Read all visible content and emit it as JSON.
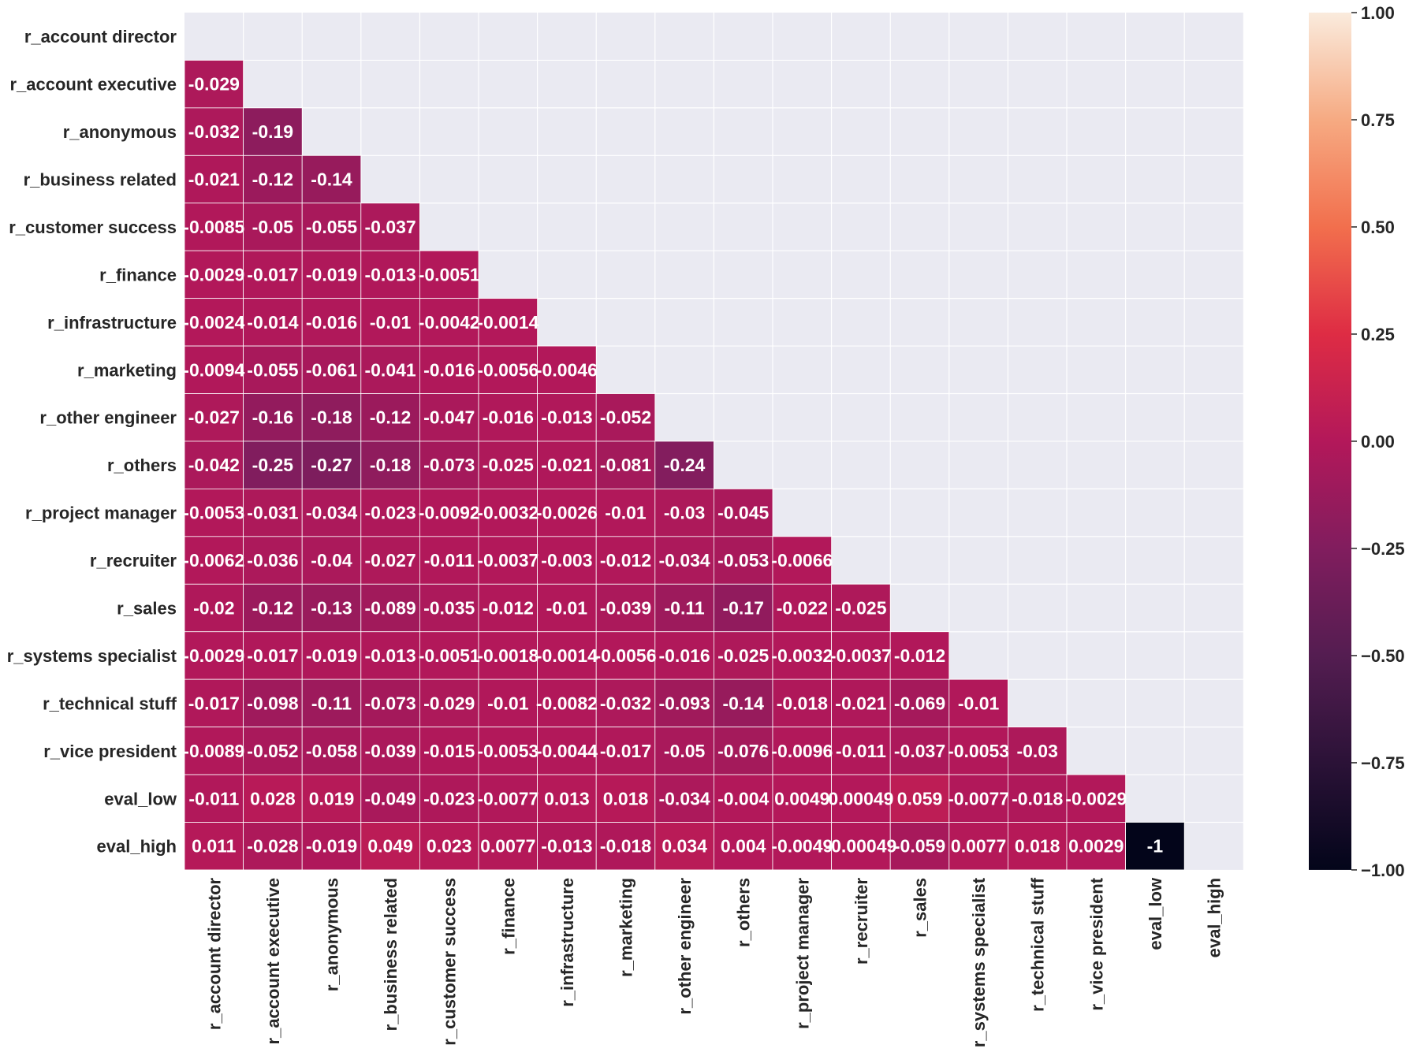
{
  "chart_data": {
    "type": "heatmap",
    "title": "",
    "xlabel": "",
    "ylabel": "",
    "mask": "upper-triangle including diagonal",
    "colormap": "rocket",
    "background_color": "#eaeaf2",
    "rows": [
      "r_account director",
      "r_account executive",
      "r_anonymous",
      "r_business related",
      "r_customer success",
      "r_finance",
      "r_infrastructure",
      "r_marketing",
      "r_other engineer",
      "r_others",
      "r_project manager",
      "r_recruiter",
      "r_sales",
      "r_systems specialist",
      "r_technical stuff",
      "r_vice president",
      "eval_low",
      "eval_high"
    ],
    "columns": [
      "r_account director",
      "r_account executive",
      "r_anonymous",
      "r_business related",
      "r_customer success",
      "r_finance",
      "r_infrastructure",
      "r_marketing",
      "r_other engineer",
      "r_others",
      "r_project manager",
      "r_recruiter",
      "r_sales",
      "r_systems specialist",
      "r_technical stuff",
      "r_vice president",
      "eval_low",
      "eval_high"
    ],
    "labels": [
      [],
      [
        "-0.029"
      ],
      [
        "-0.032",
        "-0.19"
      ],
      [
        "-0.021",
        "-0.12",
        "-0.14"
      ],
      [
        "-0.0085",
        "-0.05",
        "-0.055",
        "-0.037"
      ],
      [
        "-0.0029",
        "-0.017",
        "-0.019",
        "-0.013",
        "-0.0051"
      ],
      [
        "-0.0024",
        "-0.014",
        "-0.016",
        "-0.01",
        "-0.0042",
        "-0.0014"
      ],
      [
        "-0.0094",
        "-0.055",
        "-0.061",
        "-0.041",
        "-0.016",
        "-0.0056",
        "-0.0046"
      ],
      [
        "-0.027",
        "-0.16",
        "-0.18",
        "-0.12",
        "-0.047",
        "-0.016",
        "-0.013",
        "-0.052"
      ],
      [
        "-0.042",
        "-0.25",
        "-0.27",
        "-0.18",
        "-0.073",
        "-0.025",
        "-0.021",
        "-0.081",
        "-0.24"
      ],
      [
        "-0.0053",
        "-0.031",
        "-0.034",
        "-0.023",
        "-0.0092",
        "-0.0032",
        "-0.0026",
        "-0.01",
        "-0.03",
        "-0.045"
      ],
      [
        "-0.0062",
        "-0.036",
        "-0.04",
        "-0.027",
        "-0.011",
        "-0.0037",
        "-0.003",
        "-0.012",
        "-0.034",
        "-0.053",
        "-0.0066"
      ],
      [
        "-0.02",
        "-0.12",
        "-0.13",
        "-0.089",
        "-0.035",
        "-0.012",
        "-0.01",
        "-0.039",
        "-0.11",
        "-0.17",
        "-0.022",
        "-0.025"
      ],
      [
        "-0.0029",
        "-0.017",
        "-0.019",
        "-0.013",
        "-0.0051",
        "-0.0018",
        "-0.0014",
        "-0.0056",
        "-0.016",
        "-0.025",
        "-0.0032",
        "-0.0037",
        "-0.012"
      ],
      [
        "-0.017",
        "-0.098",
        "-0.11",
        "-0.073",
        "-0.029",
        "-0.01",
        "-0.0082",
        "-0.032",
        "-0.093",
        "-0.14",
        "-0.018",
        "-0.021",
        "-0.069",
        "-0.01"
      ],
      [
        "-0.0089",
        "-0.052",
        "-0.058",
        "-0.039",
        "-0.015",
        "-0.0053",
        "-0.0044",
        "-0.017",
        "-0.05",
        "-0.076",
        "-0.0096",
        "-0.011",
        "-0.037",
        "-0.0053",
        "-0.03"
      ],
      [
        "-0.011",
        "0.028",
        "0.019",
        "-0.049",
        "-0.023",
        "-0.0077",
        "0.013",
        "0.018",
        "-0.034",
        "-0.004",
        "0.0049",
        "0.00049",
        "0.059",
        "-0.0077",
        "-0.018",
        "-0.0029"
      ],
      [
        "0.011",
        "-0.028",
        "-0.019",
        "0.049",
        "0.023",
        "0.0077",
        "-0.013",
        "-0.018",
        "0.034",
        "0.004",
        "-0.0049",
        "-0.00049",
        "-0.059",
        "0.0077",
        "0.018",
        "0.0029",
        "-1"
      ]
    ],
    "colorbar": {
      "vmin": -1.0,
      "vmax": 1.0,
      "ticks": [
        -1.0,
        -0.75,
        -0.5,
        -0.25,
        0.0,
        0.25,
        0.5,
        0.75,
        1.0
      ],
      "tick_labels": [
        "−1.00",
        "−0.75",
        "−0.50",
        "−0.25",
        "0.00",
        "0.25",
        "0.50",
        "0.75",
        "1.00"
      ]
    }
  }
}
